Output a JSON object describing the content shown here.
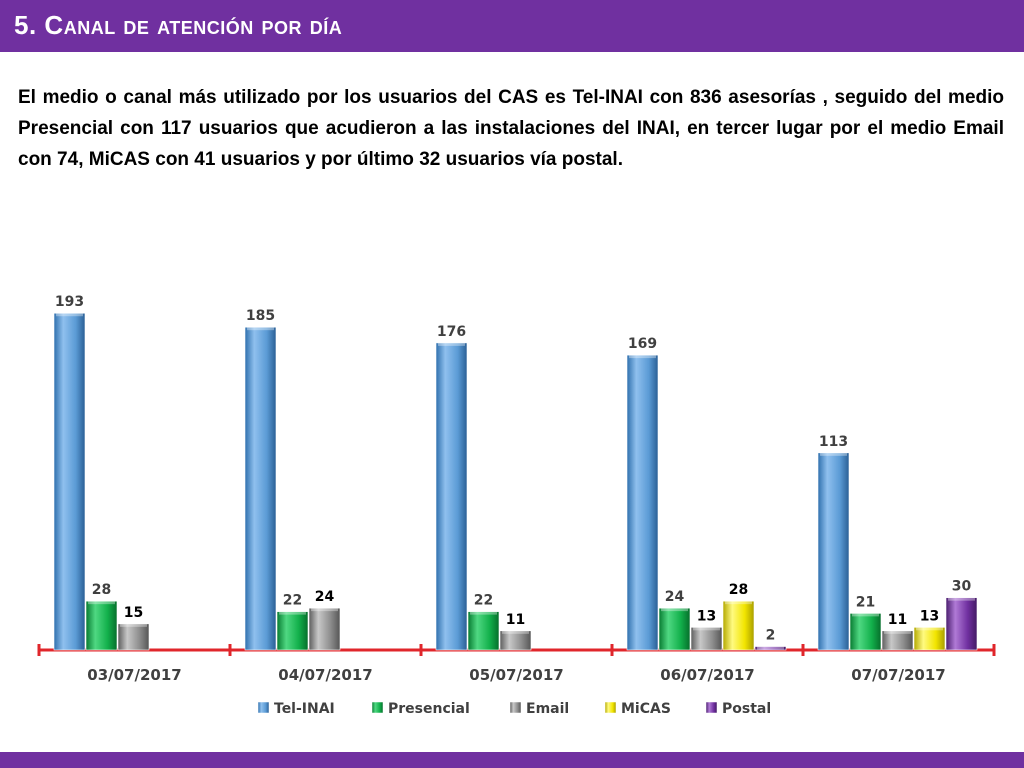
{
  "slide": {
    "title_num": "5.",
    "title_text": "Canal de atención por día",
    "description": "El medio o canal más utilizado por los usuarios del CAS es Tel-INAI con 836 asesorías , seguido del medio Presencial con 117 usuarios que acudieron a las instalaciones del INAI, en tercer lugar por el medio Email con 74, MiCAS con 41 usuarios y por último 32 usuarios vía postal."
  },
  "colors": {
    "header": "#7030a0",
    "axis": "#e0262b"
  },
  "chart_data": {
    "type": "bar",
    "title": "",
    "xlabel": "",
    "ylabel": "",
    "ylim": [
      0,
      200
    ],
    "grid": false,
    "legend_position": "bottom",
    "categories": [
      "03/07/2017",
      "04/07/2017",
      "05/07/2017",
      "06/07/2017",
      "07/07/2017"
    ],
    "series": [
      {
        "name": "Tel-INAI",
        "color": "#5b9bd5",
        "values": [
          193,
          185,
          176,
          169,
          113
        ]
      },
      {
        "name": "Presencial",
        "color": "#12b04b",
        "values": [
          28,
          22,
          22,
          24,
          21
        ]
      },
      {
        "name": "Email",
        "color": "#8c8c8c",
        "values": [
          15,
          24,
          11,
          13,
          11
        ]
      },
      {
        "name": "MiCAS",
        "color": "#f2e500",
        "values": [
          null,
          null,
          null,
          28,
          13
        ]
      },
      {
        "name": "Postal",
        "color": "#7030a0",
        "values": [
          null,
          null,
          null,
          2,
          30
        ]
      }
    ]
  }
}
